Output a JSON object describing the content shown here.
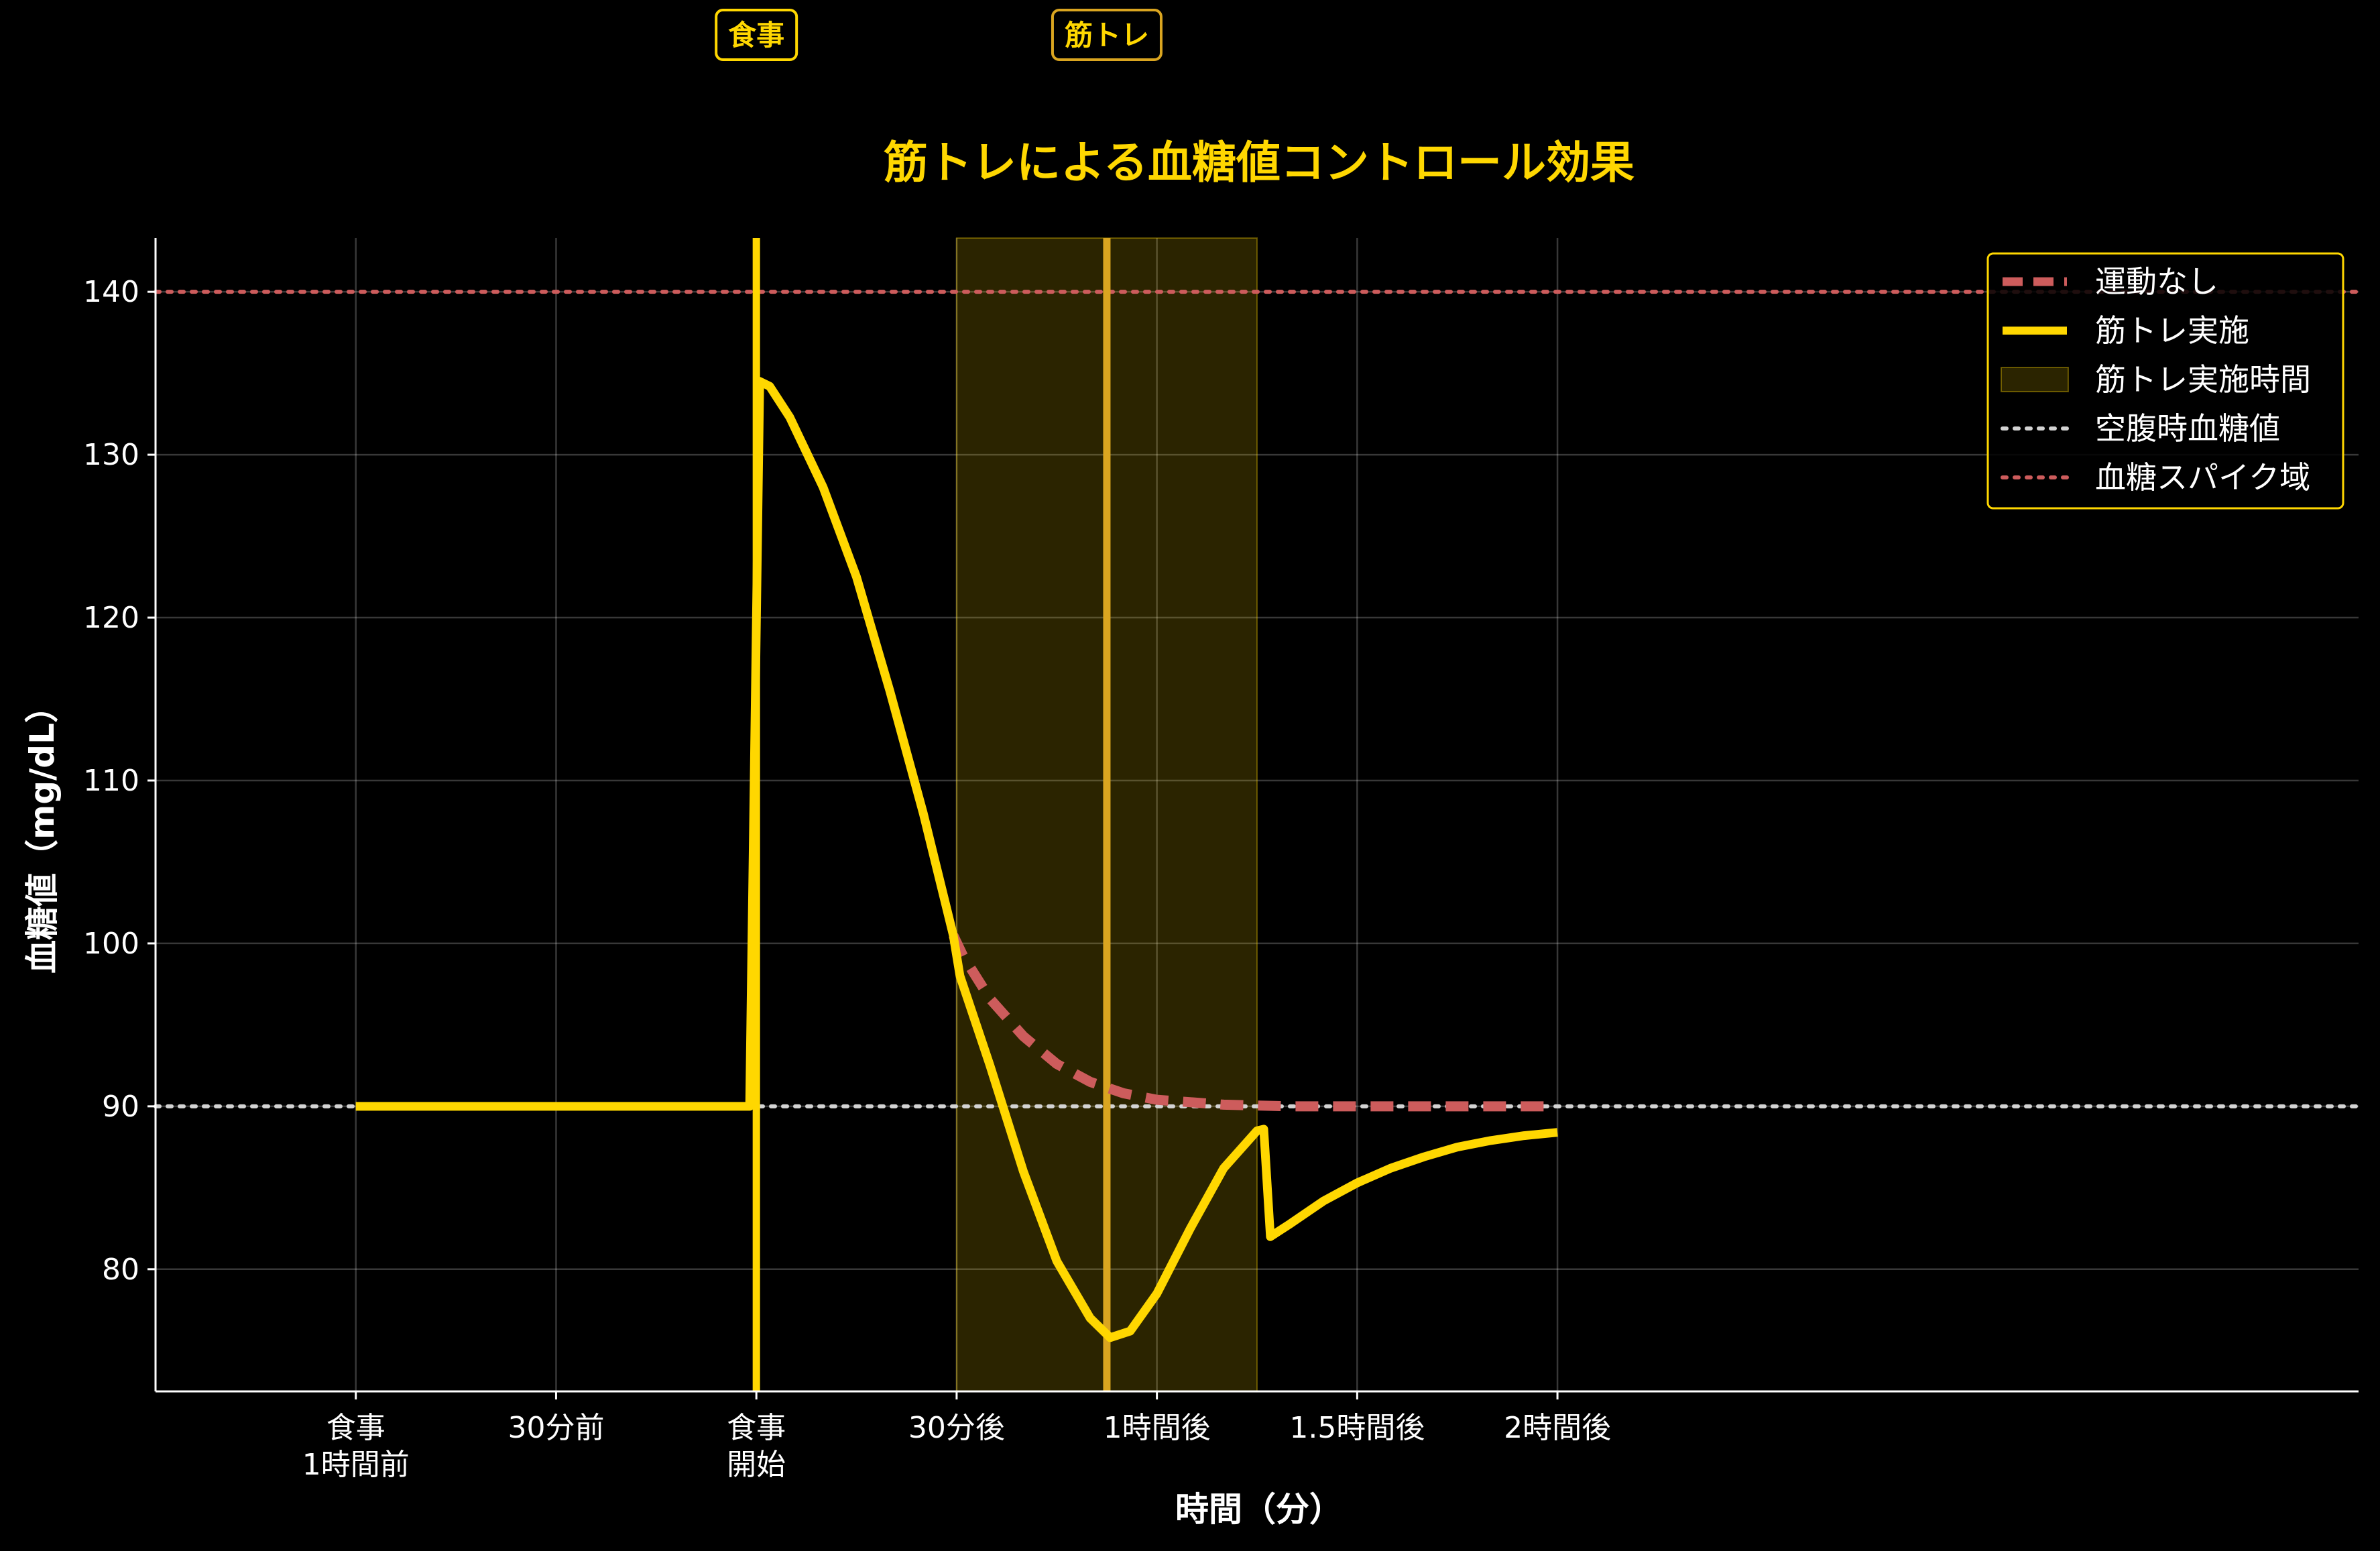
{
  "chart_data": {
    "type": "line",
    "title": "筋トレによる血糖値コントロール効果",
    "xlabel": "時間（分）",
    "ylabel": "血糖値（mg/dL）",
    "xlim": [
      -90,
      240
    ],
    "ylim": [
      72.5,
      143.3
    ],
    "x_ticks": [
      {
        "value": -60,
        "label": [
          "食事",
          "1時間前"
        ]
      },
      {
        "value": -30,
        "label": [
          "30分前"
        ]
      },
      {
        "value": 0,
        "label": [
          "食事",
          "開始"
        ]
      },
      {
        "value": 30,
        "label": [
          "30分後"
        ]
      },
      {
        "value": 60,
        "label": [
          "1時間後"
        ]
      },
      {
        "value": 90,
        "label": [
          "1.5時間後"
        ]
      },
      {
        "value": 120,
        "label": [
          "2時間後"
        ]
      }
    ],
    "y_ticks": [
      80,
      90,
      100,
      110,
      120,
      130,
      140
    ],
    "grid": true,
    "legend_position": "top-right",
    "series": [
      {
        "name": "運動なし",
        "color": "#CD5C5C",
        "style": "dashed",
        "points": [
          [
            29.5,
            100.5
          ],
          [
            31,
            99.2
          ],
          [
            35,
            96.6
          ],
          [
            40,
            94.3
          ],
          [
            45,
            92.6
          ],
          [
            50,
            91.5
          ],
          [
            55,
            90.8
          ],
          [
            60,
            90.4
          ],
          [
            70,
            90.1
          ],
          [
            80,
            90.0
          ],
          [
            120,
            90.0
          ]
        ]
      },
      {
        "name": "筋トレ実施",
        "color": "#FFD700",
        "style": "solid",
        "points": [
          [
            -60,
            90
          ],
          [
            -1,
            90
          ],
          [
            0.5,
            134.5
          ],
          [
            2,
            134.2
          ],
          [
            5,
            132.3
          ],
          [
            10,
            128.0
          ],
          [
            15,
            122.5
          ],
          [
            20,
            115.5
          ],
          [
            25,
            108.0
          ],
          [
            29.5,
            100.5
          ],
          [
            30.5,
            98.0
          ],
          [
            35,
            92.5
          ],
          [
            40,
            86.0
          ],
          [
            45,
            80.5
          ],
          [
            50,
            77.0
          ],
          [
            53,
            75.8
          ],
          [
            56,
            76.2
          ],
          [
            60,
            78.5
          ],
          [
            65,
            82.5
          ],
          [
            70,
            86.2
          ],
          [
            75,
            88.5
          ],
          [
            76,
            88.6
          ],
          [
            77,
            82.0
          ],
          [
            80,
            82.8
          ],
          [
            85,
            84.2
          ],
          [
            90,
            85.3
          ],
          [
            95,
            86.2
          ],
          [
            100,
            86.9
          ],
          [
            105,
            87.5
          ],
          [
            110,
            87.9
          ],
          [
            115,
            88.2
          ],
          [
            120,
            88.4
          ]
        ]
      }
    ],
    "shaded_region": {
      "name": "筋トレ実施時間",
      "x_start": 30,
      "x_end": 75,
      "color": "#FFD700",
      "opacity": 0.17
    },
    "reference_lines": [
      {
        "name": "空腹時血糖値",
        "y": 90,
        "color": "#D3D3D3",
        "style": "dotted"
      },
      {
        "name": "血糖スパイク域",
        "y": 140,
        "color": "#CD5C5C",
        "style": "dotted"
      }
    ],
    "event_lines": [
      {
        "label": "食事",
        "x": 0,
        "color": "#FFD700"
      },
      {
        "label": "筋トレ",
        "x": 52.5,
        "color": "#DAA520"
      }
    ]
  }
}
